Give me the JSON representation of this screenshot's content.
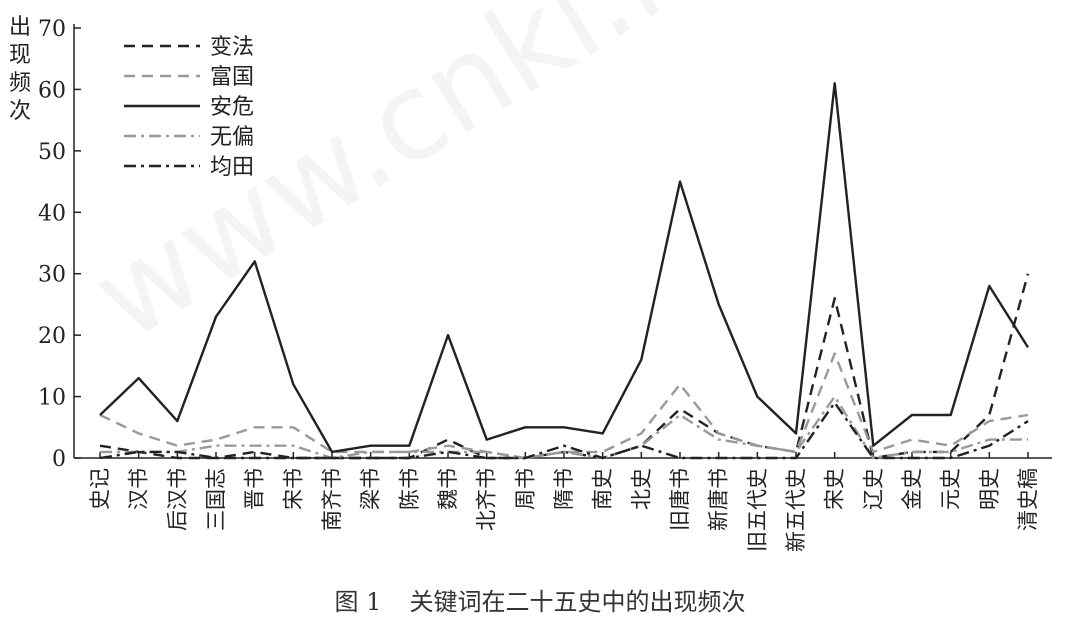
{
  "chart_data": {
    "type": "line",
    "ylabel": "出现频次",
    "ylim": [
      0,
      70
    ],
    "yticks": [
      0,
      10,
      20,
      30,
      40,
      50,
      60,
      70
    ],
    "grid": false,
    "legend_position": "top-left",
    "categories": [
      "史记",
      "汉书",
      "后汉书",
      "三国志",
      "晋书",
      "宋书",
      "南齐书",
      "梁书",
      "陈书",
      "魏书",
      "北齐书",
      "周书",
      "隋书",
      "南史",
      "北史",
      "旧唐书",
      "新唐书",
      "旧五代史",
      "新五代史",
      "宋史",
      "辽史",
      "金史",
      "元史",
      "明史",
      "清史稿"
    ],
    "series": [
      {
        "name": "变法",
        "color": "#222222",
        "dash": "dash",
        "values": [
          2,
          1,
          0,
          0,
          1,
          0,
          0,
          0,
          0,
          3,
          0,
          0,
          1,
          0,
          2,
          8,
          4,
          2,
          1,
          26,
          0,
          1,
          1,
          7,
          30
        ]
      },
      {
        "name": "富国",
        "color": "#999999",
        "dash": "dash",
        "values": [
          7,
          4,
          2,
          3,
          5,
          5,
          1,
          1,
          1,
          2,
          1,
          0,
          1,
          1,
          4,
          12,
          4,
          2,
          1,
          17,
          1,
          3,
          2,
          6,
          7
        ]
      },
      {
        "name": "安危",
        "color": "#222222",
        "dash": "solid",
        "values": [
          7,
          13,
          6,
          23,
          32,
          12,
          1,
          2,
          2,
          20,
          3,
          5,
          5,
          4,
          16,
          45,
          25,
          10,
          4,
          61,
          2,
          7,
          7,
          28,
          18
        ]
      },
      {
        "name": "无偏",
        "color": "#999999",
        "dash": "dashdot",
        "values": [
          1,
          1,
          1,
          2,
          2,
          2,
          0,
          1,
          1,
          1,
          1,
          0,
          1,
          0,
          2,
          7,
          3,
          2,
          1,
          10,
          0,
          1,
          1,
          3,
          3
        ]
      },
      {
        "name": "均田",
        "color": "#222222",
        "dash": "dashdot",
        "values": [
          0,
          1,
          1,
          0,
          0,
          0,
          0,
          0,
          0,
          1,
          0,
          0,
          2,
          0,
          2,
          0,
          0,
          0,
          0,
          9,
          0,
          0,
          0,
          2,
          6
        ]
      }
    ]
  },
  "caption": {
    "number": "图 1",
    "text": "关键词在二十五史中的出现频次"
  },
  "watermark": "www.cnki.net"
}
